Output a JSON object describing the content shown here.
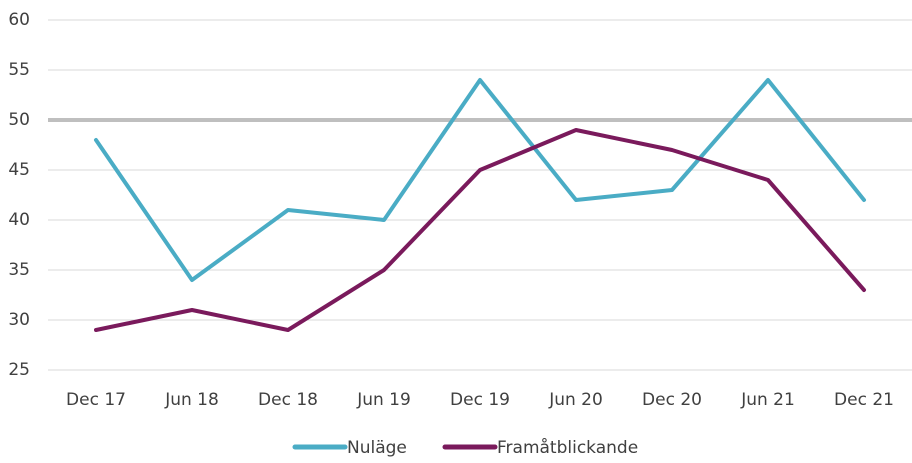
{
  "chart_data": {
    "type": "line",
    "categories": [
      "Dec 17",
      "Jun 18",
      "Dec 18",
      "Jun 19",
      "Dec 19",
      "Jun 20",
      "Dec 20",
      "Jun 21",
      "Dec 21"
    ],
    "series": [
      {
        "name": "Nuläge",
        "color": "#4aacc5",
        "values": [
          48,
          34,
          41,
          40,
          54,
          42,
          43,
          54,
          42
        ]
      },
      {
        "name": "Framåtblickande",
        "color": "#7a1a5c",
        "values": [
          29,
          31,
          29,
          35,
          45,
          49,
          47,
          44,
          33
        ]
      }
    ],
    "ylim": [
      25,
      60
    ],
    "yticks": [
      25,
      30,
      35,
      40,
      45,
      50,
      55,
      60
    ],
    "grid": true,
    "reference_line": {
      "value": 50,
      "color": "#bfbfbf"
    },
    "legend": "bottom"
  }
}
